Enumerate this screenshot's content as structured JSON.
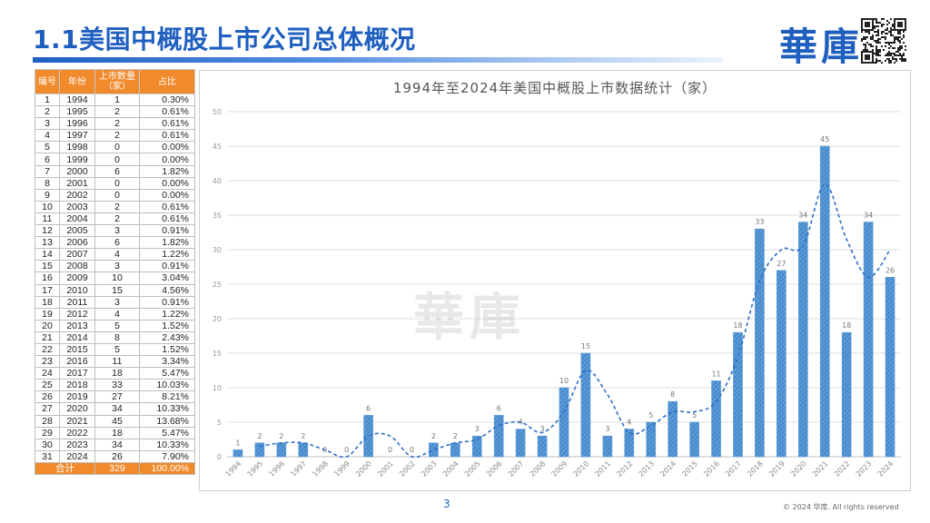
{
  "header": {
    "title": "1.1美国中概股上市公司总体概况",
    "logo_text": "華庫"
  },
  "table": {
    "headers": [
      "编号",
      "年份",
      "上市数量（家）",
      "占比"
    ],
    "rows": [
      [
        "1",
        "1994",
        "1",
        "0.30%"
      ],
      [
        "2",
        "1995",
        "2",
        "0.61%"
      ],
      [
        "3",
        "1996",
        "2",
        "0.61%"
      ],
      [
        "4",
        "1997",
        "2",
        "0.61%"
      ],
      [
        "5",
        "1998",
        "0",
        "0.00%"
      ],
      [
        "6",
        "1999",
        "0",
        "0.00%"
      ],
      [
        "7",
        "2000",
        "6",
        "1.82%"
      ],
      [
        "8",
        "2001",
        "0",
        "0.00%"
      ],
      [
        "9",
        "2002",
        "0",
        "0.00%"
      ],
      [
        "10",
        "2003",
        "2",
        "0.61%"
      ],
      [
        "11",
        "2004",
        "2",
        "0.61%"
      ],
      [
        "12",
        "2005",
        "3",
        "0.91%"
      ],
      [
        "13",
        "2006",
        "6",
        "1.82%"
      ],
      [
        "14",
        "2007",
        "4",
        "1.22%"
      ],
      [
        "15",
        "2008",
        "3",
        "0.91%"
      ],
      [
        "16",
        "2009",
        "10",
        "3.04%"
      ],
      [
        "17",
        "2010",
        "15",
        "4.56%"
      ],
      [
        "18",
        "2011",
        "3",
        "0.91%"
      ],
      [
        "19",
        "2012",
        "4",
        "1.22%"
      ],
      [
        "20",
        "2013",
        "5",
        "1.52%"
      ],
      [
        "21",
        "2014",
        "8",
        "2.43%"
      ],
      [
        "22",
        "2015",
        "5",
        "1.52%"
      ],
      [
        "23",
        "2016",
        "11",
        "3.34%"
      ],
      [
        "24",
        "2017",
        "18",
        "5.47%"
      ],
      [
        "25",
        "2018",
        "33",
        "10.03%"
      ],
      [
        "26",
        "2019",
        "27",
        "8.21%"
      ],
      [
        "27",
        "2020",
        "34",
        "10.33%"
      ],
      [
        "28",
        "2021",
        "45",
        "13.68%"
      ],
      [
        "29",
        "2022",
        "18",
        "5.47%"
      ],
      [
        "30",
        "2023",
        "34",
        "10.33%"
      ],
      [
        "31",
        "2024",
        "26",
        "7.90%"
      ]
    ],
    "total": [
      "合计",
      "329",
      "100.00%"
    ]
  },
  "chart_data": {
    "type": "bar",
    "title": "1994年至2024年美国中概股上市数据统计（家）",
    "categories": [
      "1994",
      "1995",
      "1996",
      "1997",
      "1998",
      "1999",
      "2000",
      "2001",
      "2002",
      "2003",
      "2004",
      "2005",
      "2006",
      "2007",
      "2008",
      "2009",
      "2010",
      "2011",
      "2012",
      "2013",
      "2014",
      "2015",
      "2016",
      "2017",
      "2018",
      "2019",
      "2020",
      "2021",
      "2022",
      "2023",
      "2024"
    ],
    "values": [
      1,
      2,
      2,
      2,
      0,
      0,
      6,
      0,
      0,
      2,
      2,
      3,
      6,
      4,
      3,
      10,
      15,
      3,
      4,
      5,
      8,
      5,
      11,
      18,
      33,
      27,
      34,
      45,
      18,
      34,
      26
    ],
    "trendline": "2-period moving average (dashed)",
    "ylim": [
      0,
      50
    ],
    "yticks": [
      0,
      5,
      10,
      15,
      20,
      25,
      30,
      35,
      40,
      45,
      50
    ],
    "grid": true,
    "colors": {
      "bar": "#5b9bd5",
      "bar_hatch": "#2f75c5",
      "trend": "#2e6fc7"
    }
  },
  "watermark": "華庫",
  "footer": {
    "page_number": "3",
    "copyright": "© 2024 华库. All rights reserved"
  }
}
